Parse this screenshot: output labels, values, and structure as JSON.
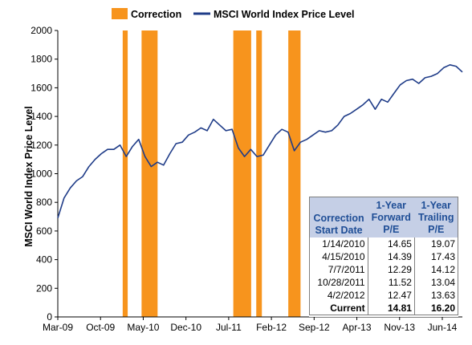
{
  "chart_data": {
    "type": "line",
    "ylabel": "MSCI World Index Price Level",
    "xlabel": "",
    "ylim": [
      0,
      2000
    ],
    "yticks": [
      0,
      200,
      400,
      600,
      800,
      1000,
      1200,
      1400,
      1600,
      1800,
      2000
    ],
    "x_range": [
      "2009-03",
      "2014-08"
    ],
    "xticks": [
      "Mar-09",
      "Oct-09",
      "May-10",
      "Dec-10",
      "Jul-11",
      "Feb-12",
      "Sep-12",
      "Apr-13",
      "Nov-13",
      "Jun-14"
    ],
    "grid": false,
    "legend_position": "top",
    "legend": [
      {
        "label": "Correction",
        "color": "#f7941d",
        "kind": "bar"
      },
      {
        "label": "MSCI World Index Price Level",
        "color": "#1f3c88",
        "kind": "line"
      }
    ],
    "series": [
      {
        "name": "MSCI World Index Price Level",
        "color": "#1f3c88",
        "points": [
          [
            "2009-03",
            690
          ],
          [
            "2009-04",
            830
          ],
          [
            "2009-05",
            900
          ],
          [
            "2009-06",
            950
          ],
          [
            "2009-07",
            980
          ],
          [
            "2009-08",
            1050
          ],
          [
            "2009-09",
            1100
          ],
          [
            "2009-10",
            1140
          ],
          [
            "2009-11",
            1170
          ],
          [
            "2009-12",
            1170
          ],
          [
            "2010-01",
            1200
          ],
          [
            "2010-02",
            1120
          ],
          [
            "2010-03",
            1190
          ],
          [
            "2010-04",
            1240
          ],
          [
            "2010-05",
            1120
          ],
          [
            "2010-06",
            1050
          ],
          [
            "2010-07",
            1080
          ],
          [
            "2010-08",
            1060
          ],
          [
            "2010-09",
            1140
          ],
          [
            "2010-10",
            1210
          ],
          [
            "2010-11",
            1220
          ],
          [
            "2010-12",
            1270
          ],
          [
            "2011-01",
            1290
          ],
          [
            "2011-02",
            1320
          ],
          [
            "2011-03",
            1300
          ],
          [
            "2011-04",
            1380
          ],
          [
            "2011-05",
            1340
          ],
          [
            "2011-06",
            1300
          ],
          [
            "2011-07",
            1310
          ],
          [
            "2011-08",
            1180
          ],
          [
            "2011-09",
            1120
          ],
          [
            "2011-10",
            1170
          ],
          [
            "2011-11",
            1120
          ],
          [
            "2011-12",
            1130
          ],
          [
            "2012-01",
            1200
          ],
          [
            "2012-02",
            1270
          ],
          [
            "2012-03",
            1310
          ],
          [
            "2012-04",
            1290
          ],
          [
            "2012-05",
            1160
          ],
          [
            "2012-06",
            1220
          ],
          [
            "2012-07",
            1240
          ],
          [
            "2012-08",
            1270
          ],
          [
            "2012-09",
            1300
          ],
          [
            "2012-10",
            1290
          ],
          [
            "2012-11",
            1300
          ],
          [
            "2012-12",
            1340
          ],
          [
            "2013-01",
            1400
          ],
          [
            "2013-02",
            1420
          ],
          [
            "2013-03",
            1450
          ],
          [
            "2013-04",
            1480
          ],
          [
            "2013-05",
            1520
          ],
          [
            "2013-06",
            1450
          ],
          [
            "2013-07",
            1520
          ],
          [
            "2013-08",
            1500
          ],
          [
            "2013-09",
            1560
          ],
          [
            "2013-10",
            1620
          ],
          [
            "2013-11",
            1650
          ],
          [
            "2013-12",
            1660
          ],
          [
            "2014-01",
            1630
          ],
          [
            "2014-02",
            1670
          ],
          [
            "2014-03",
            1680
          ],
          [
            "2014-04",
            1700
          ],
          [
            "2014-05",
            1740
          ],
          [
            "2014-06",
            1760
          ],
          [
            "2014-07",
            1750
          ],
          [
            "2014-08",
            1710
          ]
        ]
      }
    ],
    "corrections": [
      {
        "start": "2010-01-14",
        "end": "2010-02-08"
      },
      {
        "start": "2010-04-15",
        "end": "2010-07-02"
      },
      {
        "start": "2011-07-07",
        "end": "2011-10-03"
      },
      {
        "start": "2011-10-28",
        "end": "2011-11-25"
      },
      {
        "start": "2012-04-02",
        "end": "2012-06-01"
      }
    ],
    "table": {
      "headers": [
        "Correction Start Date",
        "1-Year Forward P/E",
        "1-Year Trailing P/E"
      ],
      "rows": [
        [
          "1/14/2010",
          "14.65",
          "19.07"
        ],
        [
          "4/15/2010",
          "14.39",
          "17.43"
        ],
        [
          "7/7/2011",
          "12.29",
          "14.12"
        ],
        [
          "10/28/2011",
          "11.52",
          "13.04"
        ],
        [
          "4/2/2012",
          "12.47",
          "13.63"
        ],
        [
          "Current",
          "14.81",
          "16.20"
        ]
      ]
    }
  }
}
